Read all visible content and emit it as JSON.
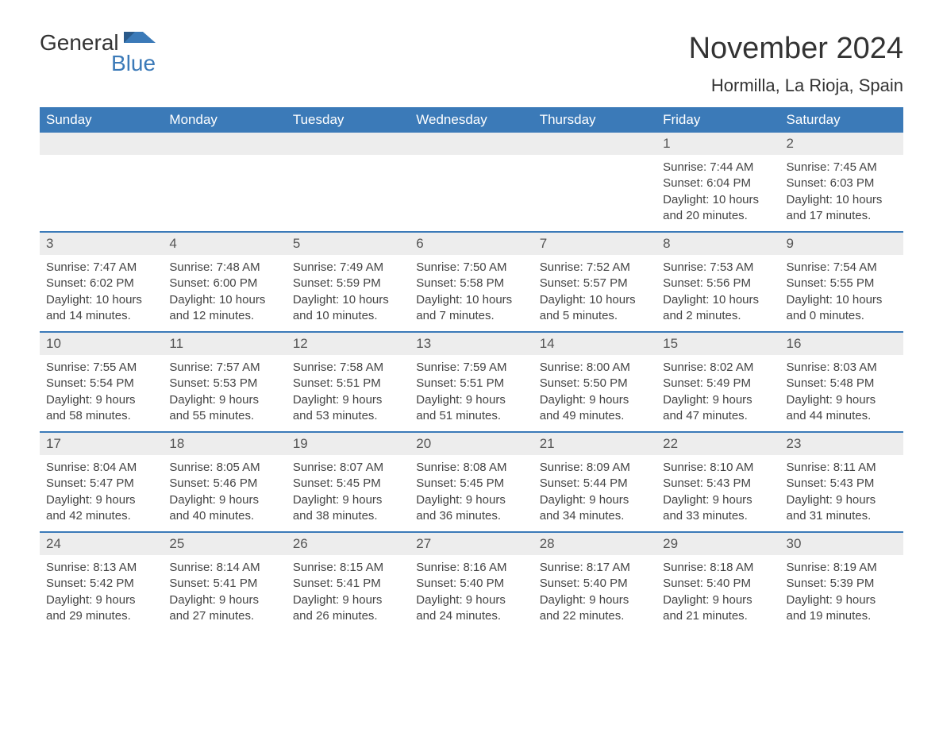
{
  "logo": {
    "text_general": "General",
    "text_blue": "Blue",
    "flag_color": "#3b7ab8"
  },
  "header": {
    "month_title": "November 2024",
    "location": "Hormilla, La Rioja, Spain"
  },
  "styling": {
    "header_bg": "#3b7ab8",
    "header_text_color": "#ffffff",
    "daynum_bg": "#ededed",
    "week_border_color": "#3b7ab8",
    "body_text_color": "#444444",
    "title_fontsize": 38,
    "location_fontsize": 22,
    "dayheader_fontsize": 17,
    "daynum_fontsize": 17,
    "body_fontsize": 15
  },
  "day_names": [
    "Sunday",
    "Monday",
    "Tuesday",
    "Wednesday",
    "Thursday",
    "Friday",
    "Saturday"
  ],
  "weeks": [
    [
      {
        "empty": true
      },
      {
        "empty": true
      },
      {
        "empty": true
      },
      {
        "empty": true
      },
      {
        "empty": true
      },
      {
        "num": "1",
        "sunrise": "Sunrise: 7:44 AM",
        "sunset": "Sunset: 6:04 PM",
        "daylight1": "Daylight: 10 hours",
        "daylight2": "and 20 minutes."
      },
      {
        "num": "2",
        "sunrise": "Sunrise: 7:45 AM",
        "sunset": "Sunset: 6:03 PM",
        "daylight1": "Daylight: 10 hours",
        "daylight2": "and 17 minutes."
      }
    ],
    [
      {
        "num": "3",
        "sunrise": "Sunrise: 7:47 AM",
        "sunset": "Sunset: 6:02 PM",
        "daylight1": "Daylight: 10 hours",
        "daylight2": "and 14 minutes."
      },
      {
        "num": "4",
        "sunrise": "Sunrise: 7:48 AM",
        "sunset": "Sunset: 6:00 PM",
        "daylight1": "Daylight: 10 hours",
        "daylight2": "and 12 minutes."
      },
      {
        "num": "5",
        "sunrise": "Sunrise: 7:49 AM",
        "sunset": "Sunset: 5:59 PM",
        "daylight1": "Daylight: 10 hours",
        "daylight2": "and 10 minutes."
      },
      {
        "num": "6",
        "sunrise": "Sunrise: 7:50 AM",
        "sunset": "Sunset: 5:58 PM",
        "daylight1": "Daylight: 10 hours",
        "daylight2": "and 7 minutes."
      },
      {
        "num": "7",
        "sunrise": "Sunrise: 7:52 AM",
        "sunset": "Sunset: 5:57 PM",
        "daylight1": "Daylight: 10 hours",
        "daylight2": "and 5 minutes."
      },
      {
        "num": "8",
        "sunrise": "Sunrise: 7:53 AM",
        "sunset": "Sunset: 5:56 PM",
        "daylight1": "Daylight: 10 hours",
        "daylight2": "and 2 minutes."
      },
      {
        "num": "9",
        "sunrise": "Sunrise: 7:54 AM",
        "sunset": "Sunset: 5:55 PM",
        "daylight1": "Daylight: 10 hours",
        "daylight2": "and 0 minutes."
      }
    ],
    [
      {
        "num": "10",
        "sunrise": "Sunrise: 7:55 AM",
        "sunset": "Sunset: 5:54 PM",
        "daylight1": "Daylight: 9 hours",
        "daylight2": "and 58 minutes."
      },
      {
        "num": "11",
        "sunrise": "Sunrise: 7:57 AM",
        "sunset": "Sunset: 5:53 PM",
        "daylight1": "Daylight: 9 hours",
        "daylight2": "and 55 minutes."
      },
      {
        "num": "12",
        "sunrise": "Sunrise: 7:58 AM",
        "sunset": "Sunset: 5:51 PM",
        "daylight1": "Daylight: 9 hours",
        "daylight2": "and 53 minutes."
      },
      {
        "num": "13",
        "sunrise": "Sunrise: 7:59 AM",
        "sunset": "Sunset: 5:51 PM",
        "daylight1": "Daylight: 9 hours",
        "daylight2": "and 51 minutes."
      },
      {
        "num": "14",
        "sunrise": "Sunrise: 8:00 AM",
        "sunset": "Sunset: 5:50 PM",
        "daylight1": "Daylight: 9 hours",
        "daylight2": "and 49 minutes."
      },
      {
        "num": "15",
        "sunrise": "Sunrise: 8:02 AM",
        "sunset": "Sunset: 5:49 PM",
        "daylight1": "Daylight: 9 hours",
        "daylight2": "and 47 minutes."
      },
      {
        "num": "16",
        "sunrise": "Sunrise: 8:03 AM",
        "sunset": "Sunset: 5:48 PM",
        "daylight1": "Daylight: 9 hours",
        "daylight2": "and 44 minutes."
      }
    ],
    [
      {
        "num": "17",
        "sunrise": "Sunrise: 8:04 AM",
        "sunset": "Sunset: 5:47 PM",
        "daylight1": "Daylight: 9 hours",
        "daylight2": "and 42 minutes."
      },
      {
        "num": "18",
        "sunrise": "Sunrise: 8:05 AM",
        "sunset": "Sunset: 5:46 PM",
        "daylight1": "Daylight: 9 hours",
        "daylight2": "and 40 minutes."
      },
      {
        "num": "19",
        "sunrise": "Sunrise: 8:07 AM",
        "sunset": "Sunset: 5:45 PM",
        "daylight1": "Daylight: 9 hours",
        "daylight2": "and 38 minutes."
      },
      {
        "num": "20",
        "sunrise": "Sunrise: 8:08 AM",
        "sunset": "Sunset: 5:45 PM",
        "daylight1": "Daylight: 9 hours",
        "daylight2": "and 36 minutes."
      },
      {
        "num": "21",
        "sunrise": "Sunrise: 8:09 AM",
        "sunset": "Sunset: 5:44 PM",
        "daylight1": "Daylight: 9 hours",
        "daylight2": "and 34 minutes."
      },
      {
        "num": "22",
        "sunrise": "Sunrise: 8:10 AM",
        "sunset": "Sunset: 5:43 PM",
        "daylight1": "Daylight: 9 hours",
        "daylight2": "and 33 minutes."
      },
      {
        "num": "23",
        "sunrise": "Sunrise: 8:11 AM",
        "sunset": "Sunset: 5:43 PM",
        "daylight1": "Daylight: 9 hours",
        "daylight2": "and 31 minutes."
      }
    ],
    [
      {
        "num": "24",
        "sunrise": "Sunrise: 8:13 AM",
        "sunset": "Sunset: 5:42 PM",
        "daylight1": "Daylight: 9 hours",
        "daylight2": "and 29 minutes."
      },
      {
        "num": "25",
        "sunrise": "Sunrise: 8:14 AM",
        "sunset": "Sunset: 5:41 PM",
        "daylight1": "Daylight: 9 hours",
        "daylight2": "and 27 minutes."
      },
      {
        "num": "26",
        "sunrise": "Sunrise: 8:15 AM",
        "sunset": "Sunset: 5:41 PM",
        "daylight1": "Daylight: 9 hours",
        "daylight2": "and 26 minutes."
      },
      {
        "num": "27",
        "sunrise": "Sunrise: 8:16 AM",
        "sunset": "Sunset: 5:40 PM",
        "daylight1": "Daylight: 9 hours",
        "daylight2": "and 24 minutes."
      },
      {
        "num": "28",
        "sunrise": "Sunrise: 8:17 AM",
        "sunset": "Sunset: 5:40 PM",
        "daylight1": "Daylight: 9 hours",
        "daylight2": "and 22 minutes."
      },
      {
        "num": "29",
        "sunrise": "Sunrise: 8:18 AM",
        "sunset": "Sunset: 5:40 PM",
        "daylight1": "Daylight: 9 hours",
        "daylight2": "and 21 minutes."
      },
      {
        "num": "30",
        "sunrise": "Sunrise: 8:19 AM",
        "sunset": "Sunset: 5:39 PM",
        "daylight1": "Daylight: 9 hours",
        "daylight2": "and 19 minutes."
      }
    ]
  ]
}
